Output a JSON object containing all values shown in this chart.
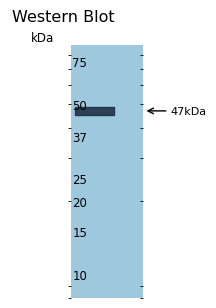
{
  "title": "Western Blot",
  "background_color": "#ffffff",
  "gel_color": "#9dc8de",
  "ladder_label": "kDa",
  "ladder_marks": [
    75,
    50,
    37,
    25,
    20,
    15,
    10
  ],
  "band_kda": 47,
  "band_label": "47kDa",
  "band_color": "#1e2d45",
  "ymin": 8,
  "ymax": 88,
  "title_fontsize": 11.5,
  "tick_fontsize": 8.5,
  "kdal_fontsize": 8.5,
  "annotation_fontsize": 8.0
}
